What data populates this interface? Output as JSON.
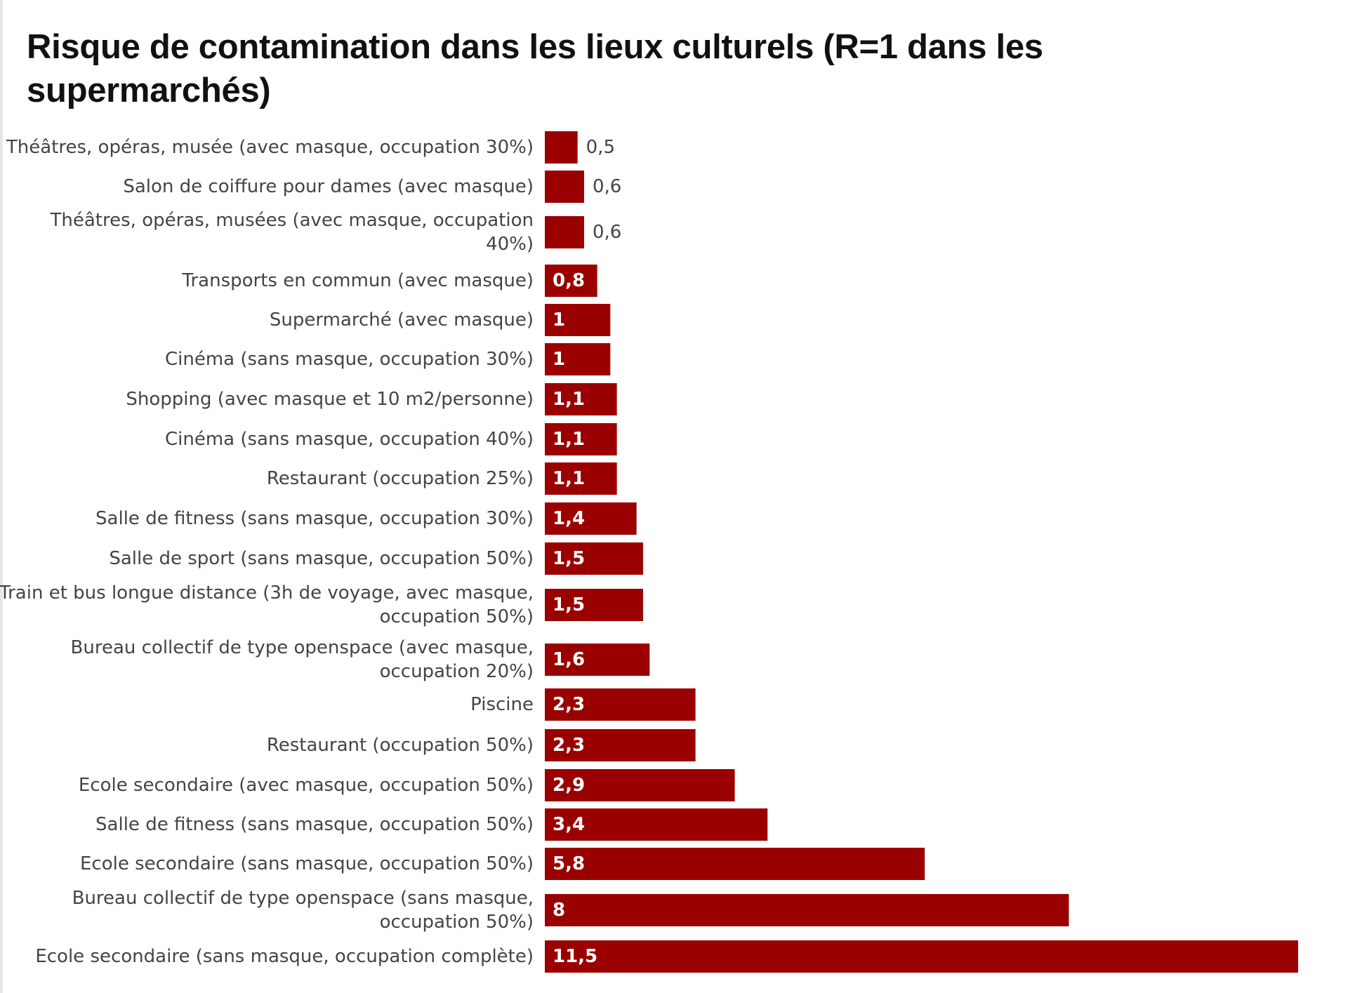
{
  "chart_data": {
    "type": "bar",
    "orientation": "horizontal",
    "title": "Risque de contamination dans les lieux culturels (R=1 dans les supermarchés)",
    "color": "#9a0000",
    "grid": false,
    "categories": [
      [
        "Théâtres, opéras, musée (avec masque, occupation 30%)"
      ],
      [
        "Salon de coiffure pour dames (avec masque)"
      ],
      [
        "Théâtres, opéras, musées (avec masque, occupation",
        "40%)"
      ],
      [
        "Transports en commun (avec masque)"
      ],
      [
        "Supermarché (avec masque)"
      ],
      [
        "Cinéma (sans masque, occupation 30%)"
      ],
      [
        "Shopping (avec masque et 10 m2/personne)"
      ],
      [
        "Cinéma (sans masque, occupation 40%)"
      ],
      [
        "Restaurant (occupation 25%)"
      ],
      [
        "Salle de fitness (sans masque, occupation 30%)"
      ],
      [
        "Salle de sport (sans masque, occupation 50%)"
      ],
      [
        "Train et bus longue distance (3h de voyage, avec masque,",
        "occupation 50%)"
      ],
      [
        "Bureau collectif de type openspace (avec masque,",
        "occupation 20%)"
      ],
      [
        "Piscine"
      ],
      [
        "Restaurant (occupation 50%)"
      ],
      [
        "Ecole secondaire (avec masque, occupation 50%)"
      ],
      [
        "Salle de fitness (sans masque, occupation 50%)"
      ],
      [
        "Ecole secondaire (sans masque, occupation 50%)"
      ],
      [
        "Bureau collectif de type openspace (sans masque,",
        "occupation 50%)"
      ],
      [
        "Ecole secondaire (sans masque, occupation complète)"
      ]
    ],
    "values": [
      0.5,
      0.6,
      0.6,
      0.8,
      1,
      1,
      1.1,
      1.1,
      1.1,
      1.4,
      1.5,
      1.5,
      1.6,
      2.3,
      2.3,
      2.9,
      3.4,
      5.8,
      8,
      11.5
    ],
    "value_labels": [
      "0,5",
      "0,6",
      "0,6",
      "0,8",
      "1",
      "1",
      "1,1",
      "1,1",
      "1,1",
      "1,4",
      "1,5",
      "1,5",
      "1,6",
      "2,3",
      "2,3",
      "2,9",
      "3,4",
      "5,8",
      "8",
      "11,5"
    ]
  }
}
